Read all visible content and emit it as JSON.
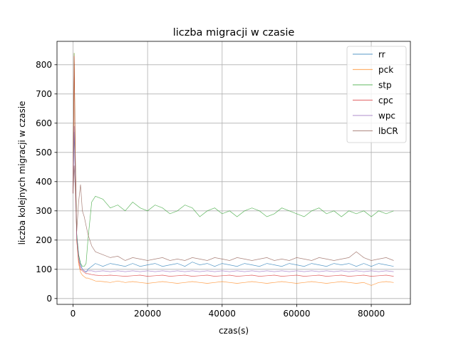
{
  "chart_data": {
    "type": "line",
    "title": "liczba migracji w czasie",
    "xlabel": "czas(s)",
    "ylabel": "liczba kolejnych migracji w czasie",
    "xlim": [
      -4300,
      90500
    ],
    "ylim": [
      -20,
      880
    ],
    "xticks": [
      0,
      20000,
      40000,
      60000,
      80000
    ],
    "yticks": [
      0,
      100,
      200,
      300,
      400,
      500,
      600,
      700,
      800
    ],
    "grid": true,
    "legend_position": "top-right",
    "series": [
      {
        "name": "rr",
        "color": "#1f77b4",
        "x": [
          0,
          300,
          600,
          1000,
          1500,
          2000,
          2500,
          3000,
          3500,
          4000,
          5000,
          6000,
          8000,
          10000,
          12000,
          14000,
          16000,
          18000,
          20000,
          22000,
          24000,
          26000,
          28000,
          30000,
          32000,
          34000,
          36000,
          38000,
          40000,
          42000,
          44000,
          46000,
          48000,
          50000,
          52000,
          54000,
          56000,
          58000,
          60000,
          62000,
          64000,
          66000,
          68000,
          70000,
          72000,
          74000,
          76000,
          78000,
          80000,
          82000,
          84000,
          86000
        ],
        "y": [
          360,
          570,
          430,
          220,
          150,
          120,
          100,
          95,
          90,
          100,
          110,
          120,
          110,
          120,
          115,
          110,
          120,
          110,
          115,
          120,
          110,
          115,
          120,
          110,
          125,
          115,
          120,
          110,
          120,
          115,
          110,
          120,
          115,
          110,
          120,
          115,
          110,
          120,
          115,
          110,
          120,
          115,
          110,
          120,
          115,
          120,
          110,
          120,
          110,
          120,
          115,
          110
        ]
      },
      {
        "name": "pck",
        "color": "#ff7f0e",
        "x": [
          0,
          300,
          600,
          1000,
          1500,
          2000,
          2500,
          3000,
          3500,
          4000,
          5000,
          6000,
          8000,
          10000,
          12000,
          14000,
          16000,
          18000,
          20000,
          22000,
          24000,
          26000,
          28000,
          30000,
          32000,
          34000,
          36000,
          38000,
          40000,
          42000,
          44000,
          46000,
          48000,
          50000,
          52000,
          54000,
          56000,
          58000,
          60000,
          62000,
          64000,
          66000,
          68000,
          70000,
          72000,
          74000,
          76000,
          78000,
          80000,
          82000,
          84000,
          86000
        ],
        "y": [
          360,
          840,
          500,
          200,
          120,
          90,
          80,
          75,
          70,
          70,
          65,
          60,
          58,
          55,
          60,
          55,
          58,
          55,
          52,
          55,
          58,
          55,
          52,
          55,
          58,
          55,
          52,
          55,
          58,
          55,
          52,
          55,
          58,
          55,
          52,
          55,
          58,
          55,
          52,
          55,
          58,
          55,
          52,
          55,
          58,
          55,
          52,
          55,
          45,
          55,
          58,
          55
        ]
      },
      {
        "name": "stp",
        "color": "#2ca02c",
        "x": [
          0,
          300,
          600,
          1000,
          1500,
          2000,
          2500,
          3000,
          3500,
          4000,
          5000,
          6000,
          8000,
          10000,
          12000,
          14000,
          16000,
          18000,
          20000,
          22000,
          24000,
          26000,
          28000,
          30000,
          32000,
          34000,
          36000,
          38000,
          40000,
          42000,
          44000,
          46000,
          48000,
          50000,
          52000,
          54000,
          56000,
          58000,
          60000,
          62000,
          64000,
          66000,
          68000,
          70000,
          72000,
          74000,
          76000,
          78000,
          80000,
          82000,
          84000,
          86000
        ],
        "y": [
          360,
          840,
          500,
          220,
          150,
          120,
          110,
          110,
          120,
          200,
          330,
          350,
          340,
          310,
          320,
          300,
          330,
          310,
          300,
          320,
          310,
          290,
          300,
          320,
          310,
          280,
          300,
          310,
          290,
          300,
          280,
          300,
          310,
          300,
          280,
          290,
          310,
          300,
          290,
          280,
          300,
          310,
          290,
          300,
          280,
          300,
          290,
          300,
          280,
          300,
          290,
          300
        ]
      },
      {
        "name": "cpc",
        "color": "#d62728",
        "x": [
          0,
          300,
          600,
          1000,
          1500,
          2000,
          2500,
          3000,
          3500,
          4000,
          5000,
          6000,
          8000,
          10000,
          12000,
          14000,
          16000,
          18000,
          20000,
          22000,
          24000,
          26000,
          28000,
          30000,
          32000,
          34000,
          36000,
          38000,
          40000,
          42000,
          44000,
          46000,
          48000,
          50000,
          52000,
          54000,
          56000,
          58000,
          60000,
          62000,
          64000,
          66000,
          68000,
          70000,
          72000,
          74000,
          76000,
          78000,
          80000,
          82000,
          84000,
          86000
        ],
        "y": [
          360,
          830,
          480,
          200,
          130,
          100,
          95,
          90,
          85,
          85,
          82,
          80,
          78,
          80,
          78,
          76,
          78,
          80,
          76,
          78,
          80,
          76,
          78,
          80,
          76,
          78,
          80,
          76,
          78,
          80,
          76,
          78,
          80,
          76,
          78,
          80,
          76,
          78,
          80,
          76,
          78,
          80,
          76,
          78,
          80,
          76,
          78,
          80,
          76,
          78,
          80,
          76
        ]
      },
      {
        "name": "wpc",
        "color": "#9467bd",
        "x": [
          0,
          300,
          600,
          1000,
          1500,
          2000,
          2500,
          3000,
          3500,
          4000,
          5000,
          6000,
          8000,
          10000,
          12000,
          14000,
          16000,
          18000,
          20000,
          22000,
          24000,
          26000,
          28000,
          30000,
          32000,
          34000,
          36000,
          38000,
          40000,
          42000,
          44000,
          46000,
          48000,
          50000,
          52000,
          54000,
          56000,
          58000,
          60000,
          62000,
          64000,
          66000,
          68000,
          70000,
          72000,
          74000,
          76000,
          78000,
          80000,
          82000,
          84000,
          86000
        ],
        "y": [
          360,
          590,
          420,
          210,
          140,
          110,
          100,
          95,
          92,
          95,
          95,
          92,
          95,
          92,
          95,
          92,
          95,
          92,
          95,
          92,
          95,
          92,
          95,
          92,
          95,
          92,
          95,
          92,
          95,
          92,
          95,
          92,
          95,
          92,
          95,
          92,
          95,
          92,
          95,
          92,
          95,
          92,
          95,
          92,
          95,
          92,
          95,
          92,
          95,
          92,
          95,
          92
        ]
      },
      {
        "name": "lbCR",
        "color": "#8c564b",
        "x": [
          0,
          300,
          600,
          1000,
          1500,
          2000,
          2500,
          3000,
          3500,
          4000,
          5000,
          6000,
          8000,
          10000,
          12000,
          14000,
          16000,
          18000,
          20000,
          22000,
          24000,
          26000,
          28000,
          30000,
          32000,
          34000,
          36000,
          38000,
          40000,
          42000,
          44000,
          46000,
          48000,
          50000,
          52000,
          54000,
          56000,
          58000,
          60000,
          62000,
          64000,
          66000,
          68000,
          70000,
          72000,
          74000,
          76000,
          78000,
          80000,
          82000,
          84000,
          86000
        ],
        "y": [
          360,
          455,
          380,
          230,
          330,
          390,
          300,
          280,
          250,
          220,
          180,
          160,
          150,
          140,
          145,
          130,
          140,
          135,
          130,
          135,
          140,
          130,
          135,
          130,
          140,
          135,
          130,
          140,
          135,
          130,
          140,
          135,
          130,
          135,
          140,
          130,
          135,
          130,
          140,
          135,
          130,
          140,
          135,
          130,
          135,
          140,
          160,
          140,
          130,
          135,
          140,
          130
        ]
      }
    ]
  }
}
